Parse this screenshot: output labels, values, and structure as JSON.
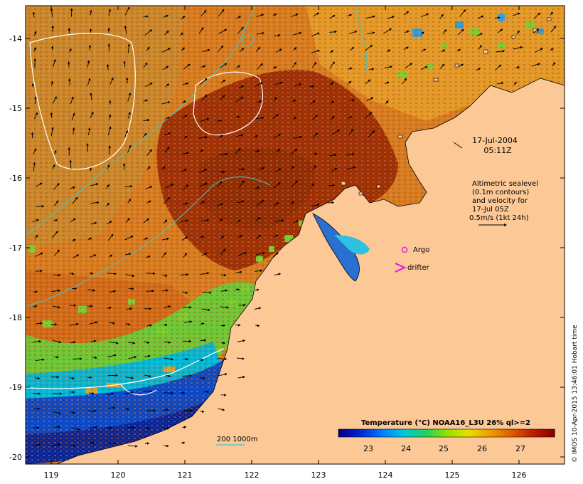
{
  "map": {
    "lon_ticks": [
      "119",
      "120",
      "121",
      "122",
      "123",
      "124",
      "125",
      "126"
    ],
    "lat_ticks": [
      "-14",
      "-15",
      "-16",
      "-17",
      "-18",
      "-19",
      "-20"
    ],
    "lon_range": [
      118.65,
      126.7
    ],
    "lat_range": [
      -13.58,
      -20.05
    ]
  },
  "datetime": {
    "date": "17-Jul-2004",
    "time": "05:11Z"
  },
  "altimetry_note": {
    "line1": "Altimetric sealevel",
    "line2": "(0.1m contours)",
    "line3": "and velocity for",
    "line4": "17-Jul 05Z",
    "line5": "0.5m/s (1kt 24h)"
  },
  "markers": {
    "argo_label": "Argo",
    "drifter_label": "drifter",
    "argo_color": "#e020e0",
    "drifter_color": "#e020e0"
  },
  "depth_legend": {
    "label": "200 1000m",
    "color": "#40c8c8"
  },
  "colorbar": {
    "title": "Temperature (°C) NOAA16_L3U 26% ql>=2",
    "ticks": [
      "23",
      "24",
      "25",
      "26",
      "27"
    ],
    "colors": [
      "#00008c",
      "#0028d8",
      "#0080ff",
      "#00c8e0",
      "#20d060",
      "#90e000",
      "#e8e000",
      "#f0a000",
      "#e06000",
      "#c02000",
      "#8a0000"
    ]
  },
  "credit": "© IMOS 10-Apr-2015 13:46:01 Hobart time",
  "colors": {
    "land": "#fcc896",
    "sst_warm": "#d2701e",
    "sst_hot": "#9a2e08",
    "sst_mid": "#e09a20",
    "sst_green": "#58c838",
    "sst_cold": "#0a2ea8"
  }
}
